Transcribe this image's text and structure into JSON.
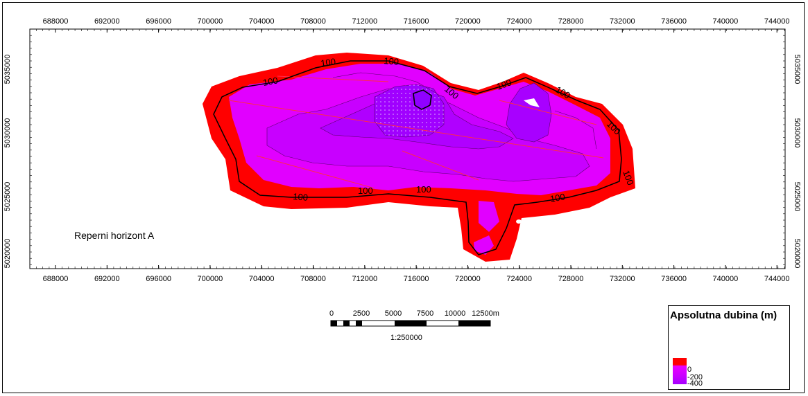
{
  "map": {
    "label": "Reperni horizont A",
    "x_ticks": [
      "688000",
      "692000",
      "696000",
      "700000",
      "704000",
      "708000",
      "712000",
      "716000",
      "720000",
      "724000",
      "728000",
      "732000",
      "736000",
      "740000",
      "744000"
    ],
    "y_ticks": [
      "5035000",
      "5030000",
      "5025000",
      "5020000"
    ],
    "contour_labels": [
      "100",
      "100",
      "100",
      "100",
      "100",
      "100",
      "100",
      "100",
      "100",
      "100",
      "100",
      "100"
    ],
    "colors": {
      "shallow": "#ff0000",
      "mid": "#e000ff",
      "deep": "#a000ff"
    }
  },
  "scalebar": {
    "labels": [
      "0",
      "2500",
      "5000",
      "7500",
      "10000",
      "12500m"
    ],
    "ratio": "1:250000"
  },
  "legend": {
    "title": "Apsolutna dubina (m)",
    "values": [
      "0",
      "-200",
      "-400"
    ]
  }
}
